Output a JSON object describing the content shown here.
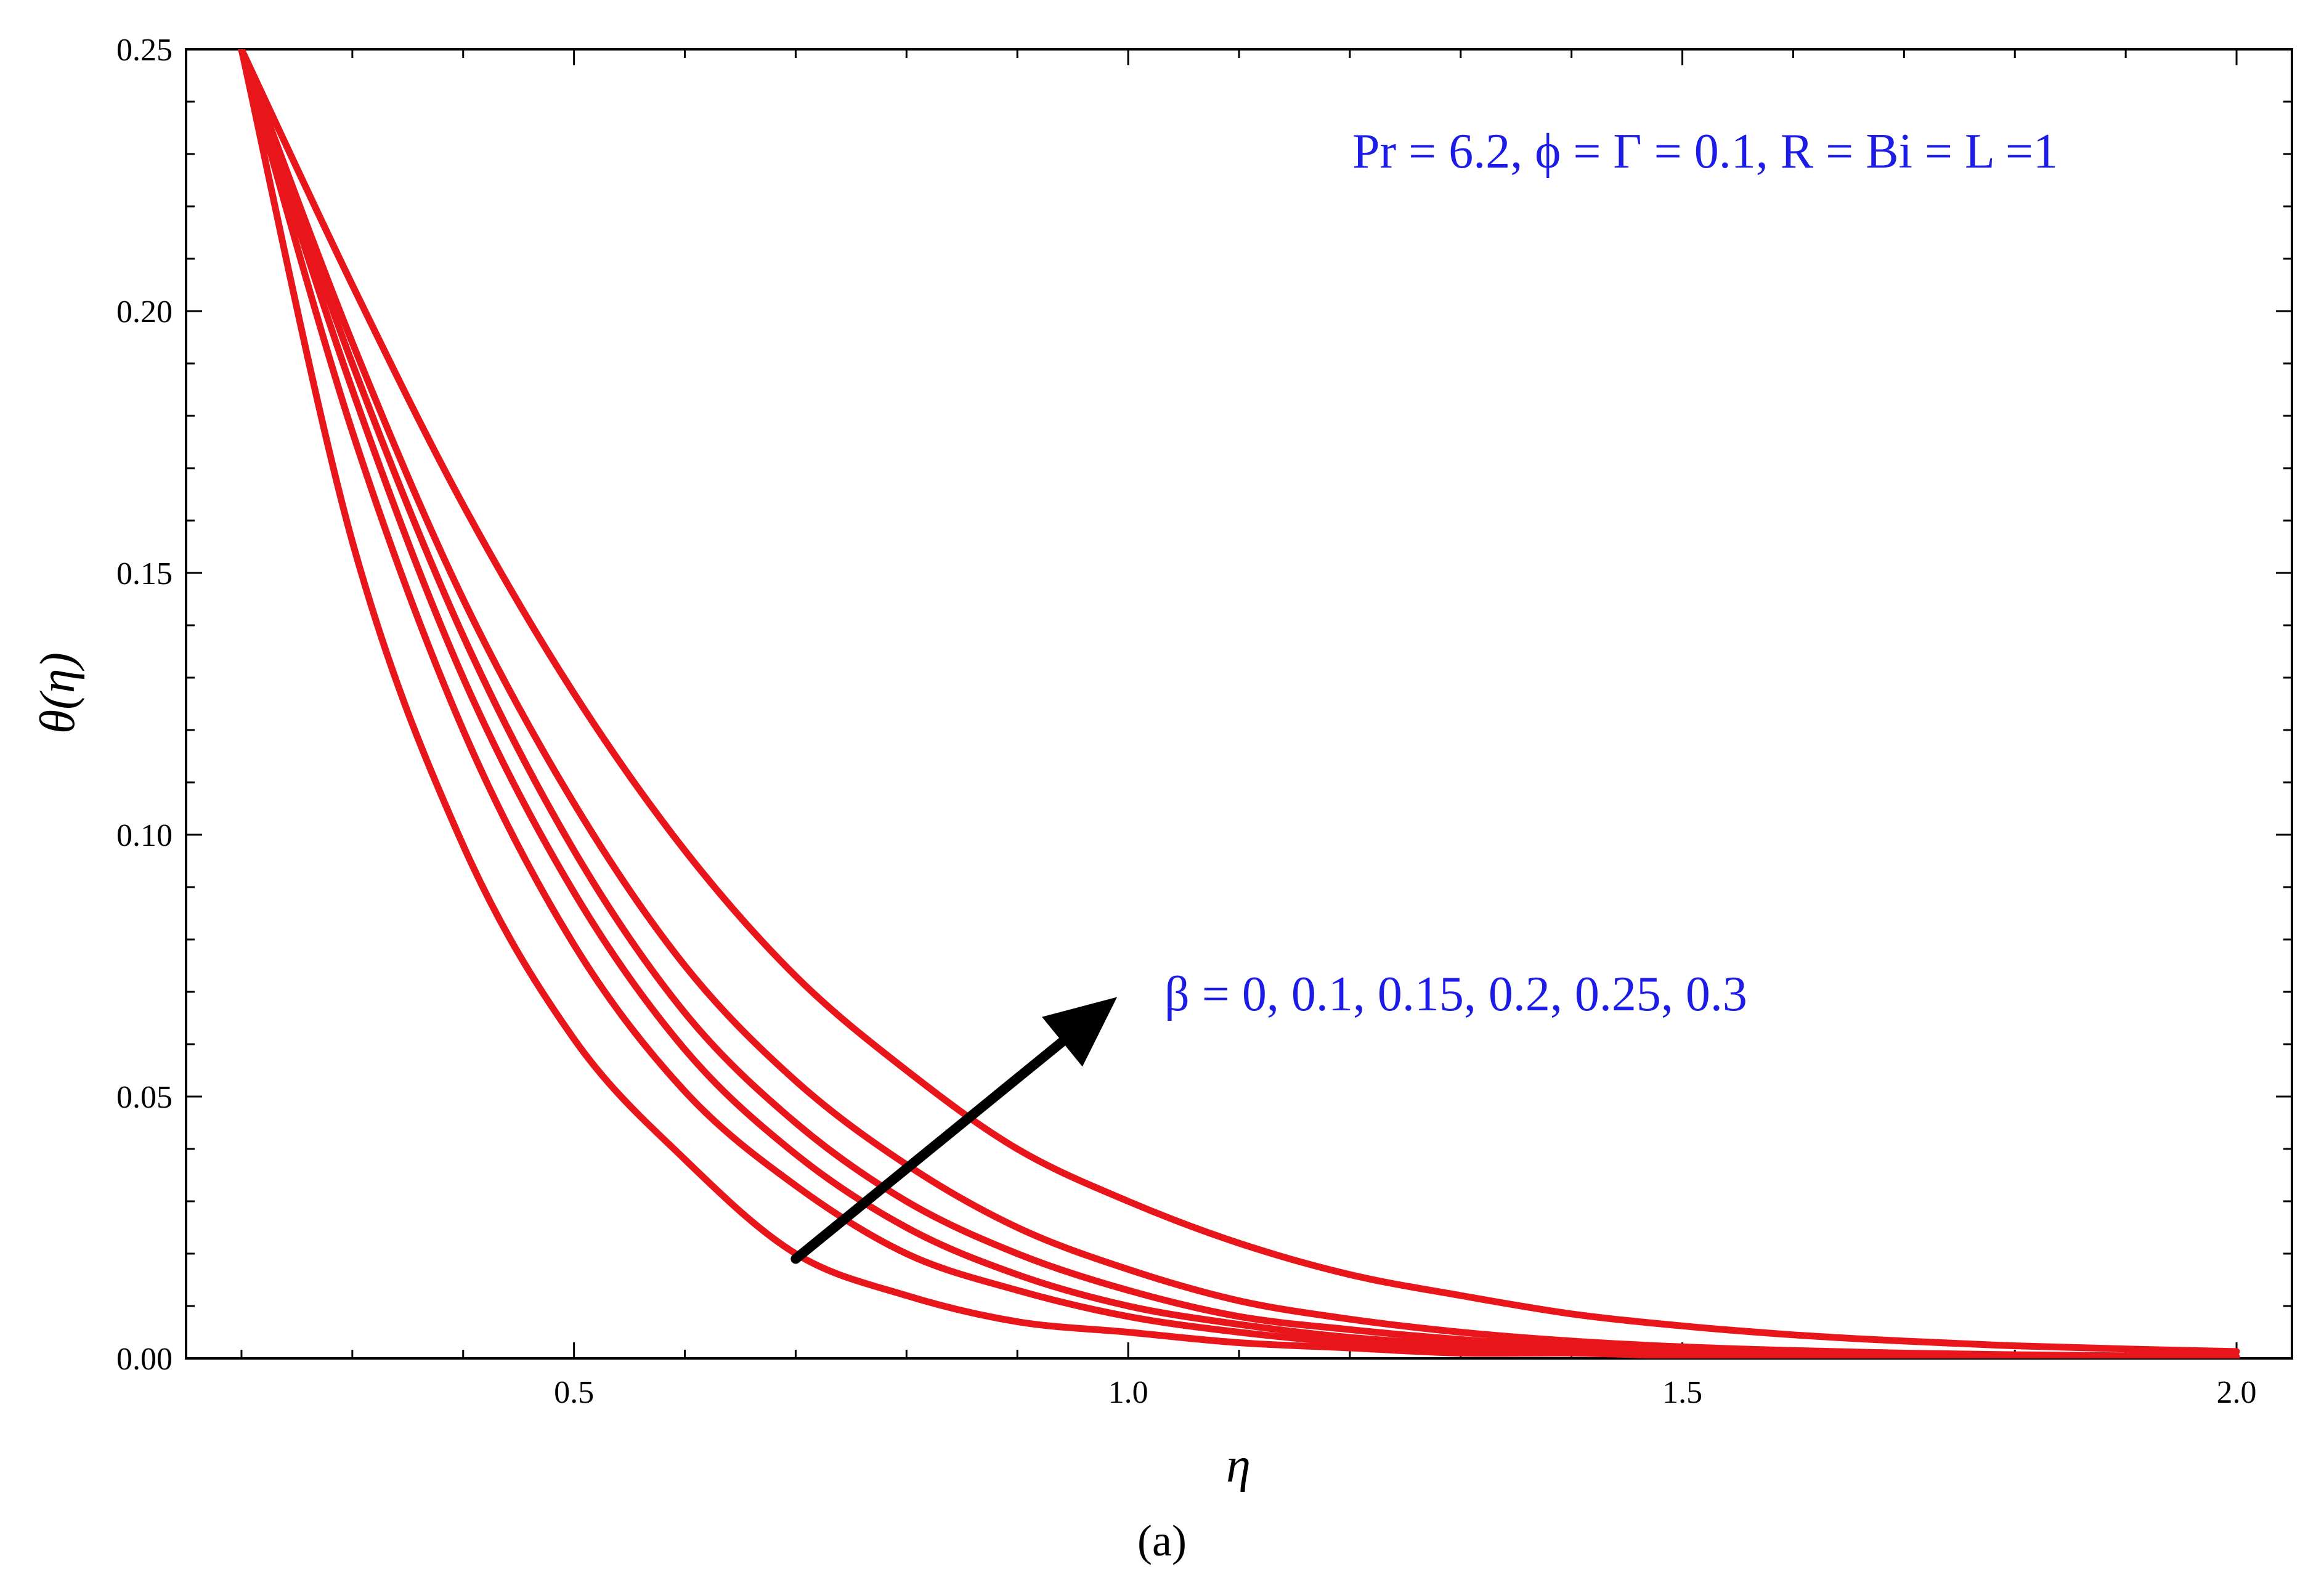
{
  "chart_data": {
    "type": "line",
    "xlabel": "η",
    "ylabel": "θ(η)",
    "xlim": [
      0.15,
      2.05
    ],
    "ylim": [
      0,
      0.25
    ],
    "x_ticks": [
      "0.5",
      "1.0",
      "1.5",
      "2.0"
    ],
    "x_tick_values": [
      0.5,
      1.0,
      1.5,
      2.0
    ],
    "y_ticks": [
      "0.00",
      "0.05",
      "0.10",
      "0.15",
      "0.20",
      "0.25"
    ],
    "y_tick_values": [
      0,
      0.05,
      0.1,
      0.15,
      0.2,
      0.25
    ],
    "x_minor_step": 0.1,
    "y_minor_step": 0.01,
    "grid": false,
    "line_color": "#e8161b",
    "annotation_color": "#1c1ce6",
    "parameters_text": "Pr = 6.2, ϕ = Γ = 0.1, R = Bi = L =1",
    "beta_text": "β = 0, 0.1, 0.15, 0.2, 0.25, 0.3",
    "arrow": {
      "from": [
        0.7,
        0.019
      ],
      "to": [
        0.99,
        0.069
      ],
      "meaning": "increasing β"
    },
    "caption": "(a)",
    "series": [
      {
        "x": [
          0.2,
          0.3,
          0.4,
          0.5,
          0.6,
          0.7,
          0.8,
          0.9,
          1.0,
          1.1,
          1.2,
          1.3,
          1.4,
          1.5,
          1.6,
          1.7,
          1.8,
          1.9,
          2.0
        ],
        "values": [
          0.25,
          0.156,
          0.098,
          0.061,
          0.038,
          0.02,
          0.012,
          0.007,
          0.005,
          0.003,
          0.002,
          0.001,
          0.001,
          0.0005,
          0.0004,
          0.0003,
          0.0002,
          0.0001,
          0.0001
        ]
      },
      {
        "x": [
          0.2,
          0.3,
          0.4,
          0.5,
          0.6,
          0.7,
          0.8,
          0.9,
          1.0,
          1.1,
          1.2,
          1.3,
          1.4,
          1.5,
          1.6,
          1.7,
          1.8,
          1.9,
          2.0
        ],
        "values": [
          0.25,
          0.177,
          0.12,
          0.079,
          0.051,
          0.033,
          0.02,
          0.013,
          0.008,
          0.005,
          0.003,
          0.002,
          0.0013,
          0.0008,
          0.0005,
          0.0003,
          0.0002,
          0.0001,
          0.0001
        ]
      },
      {
        "x": [
          0.2,
          0.3,
          0.4,
          0.5,
          0.6,
          0.7,
          0.8,
          0.9,
          1.0,
          1.1,
          1.2,
          1.3,
          1.4,
          1.5,
          1.6,
          1.7,
          1.8,
          1.9,
          2.0
        ],
        "values": [
          0.25,
          0.185,
          0.13,
          0.089,
          0.059,
          0.039,
          0.025,
          0.016,
          0.01,
          0.0065,
          0.004,
          0.0026,
          0.0017,
          0.0011,
          0.0007,
          0.0004,
          0.0003,
          0.0002,
          0.0001
        ]
      },
      {
        "x": [
          0.2,
          0.3,
          0.4,
          0.5,
          0.6,
          0.7,
          0.8,
          0.9,
          1.0,
          1.1,
          1.2,
          1.3,
          1.4,
          1.5,
          1.6,
          1.7,
          1.8,
          1.9,
          2.0
        ],
        "values": [
          0.25,
          0.19,
          0.138,
          0.097,
          0.066,
          0.045,
          0.03,
          0.02,
          0.013,
          0.008,
          0.0055,
          0.0036,
          0.0023,
          0.0015,
          0.001,
          0.0006,
          0.0004,
          0.0003,
          0.0002
        ]
      },
      {
        "x": [
          0.2,
          0.3,
          0.4,
          0.5,
          0.6,
          0.7,
          0.8,
          0.9,
          1.0,
          1.1,
          1.2,
          1.3,
          1.4,
          1.5,
          1.6,
          1.7,
          1.8,
          1.9,
          2.0
        ],
        "values": [
          0.25,
          0.194,
          0.145,
          0.106,
          0.075,
          0.053,
          0.037,
          0.025,
          0.017,
          0.011,
          0.0075,
          0.005,
          0.0033,
          0.0022,
          0.0015,
          0.001,
          0.0007,
          0.0005,
          0.0003
        ]
      },
      {
        "x": [
          0.2,
          0.3,
          0.4,
          0.5,
          0.6,
          0.7,
          0.8,
          0.9,
          1.0,
          1.1,
          1.2,
          1.3,
          1.4,
          1.5,
          1.6,
          1.7,
          1.8,
          1.9,
          2.0
        ],
        "values": [
          0.25,
          0.205,
          0.163,
          0.127,
          0.097,
          0.073,
          0.055,
          0.04,
          0.03,
          0.022,
          0.016,
          0.012,
          0.0085,
          0.0062,
          0.0045,
          0.0033,
          0.0024,
          0.0018,
          0.0013
        ]
      }
    ]
  }
}
